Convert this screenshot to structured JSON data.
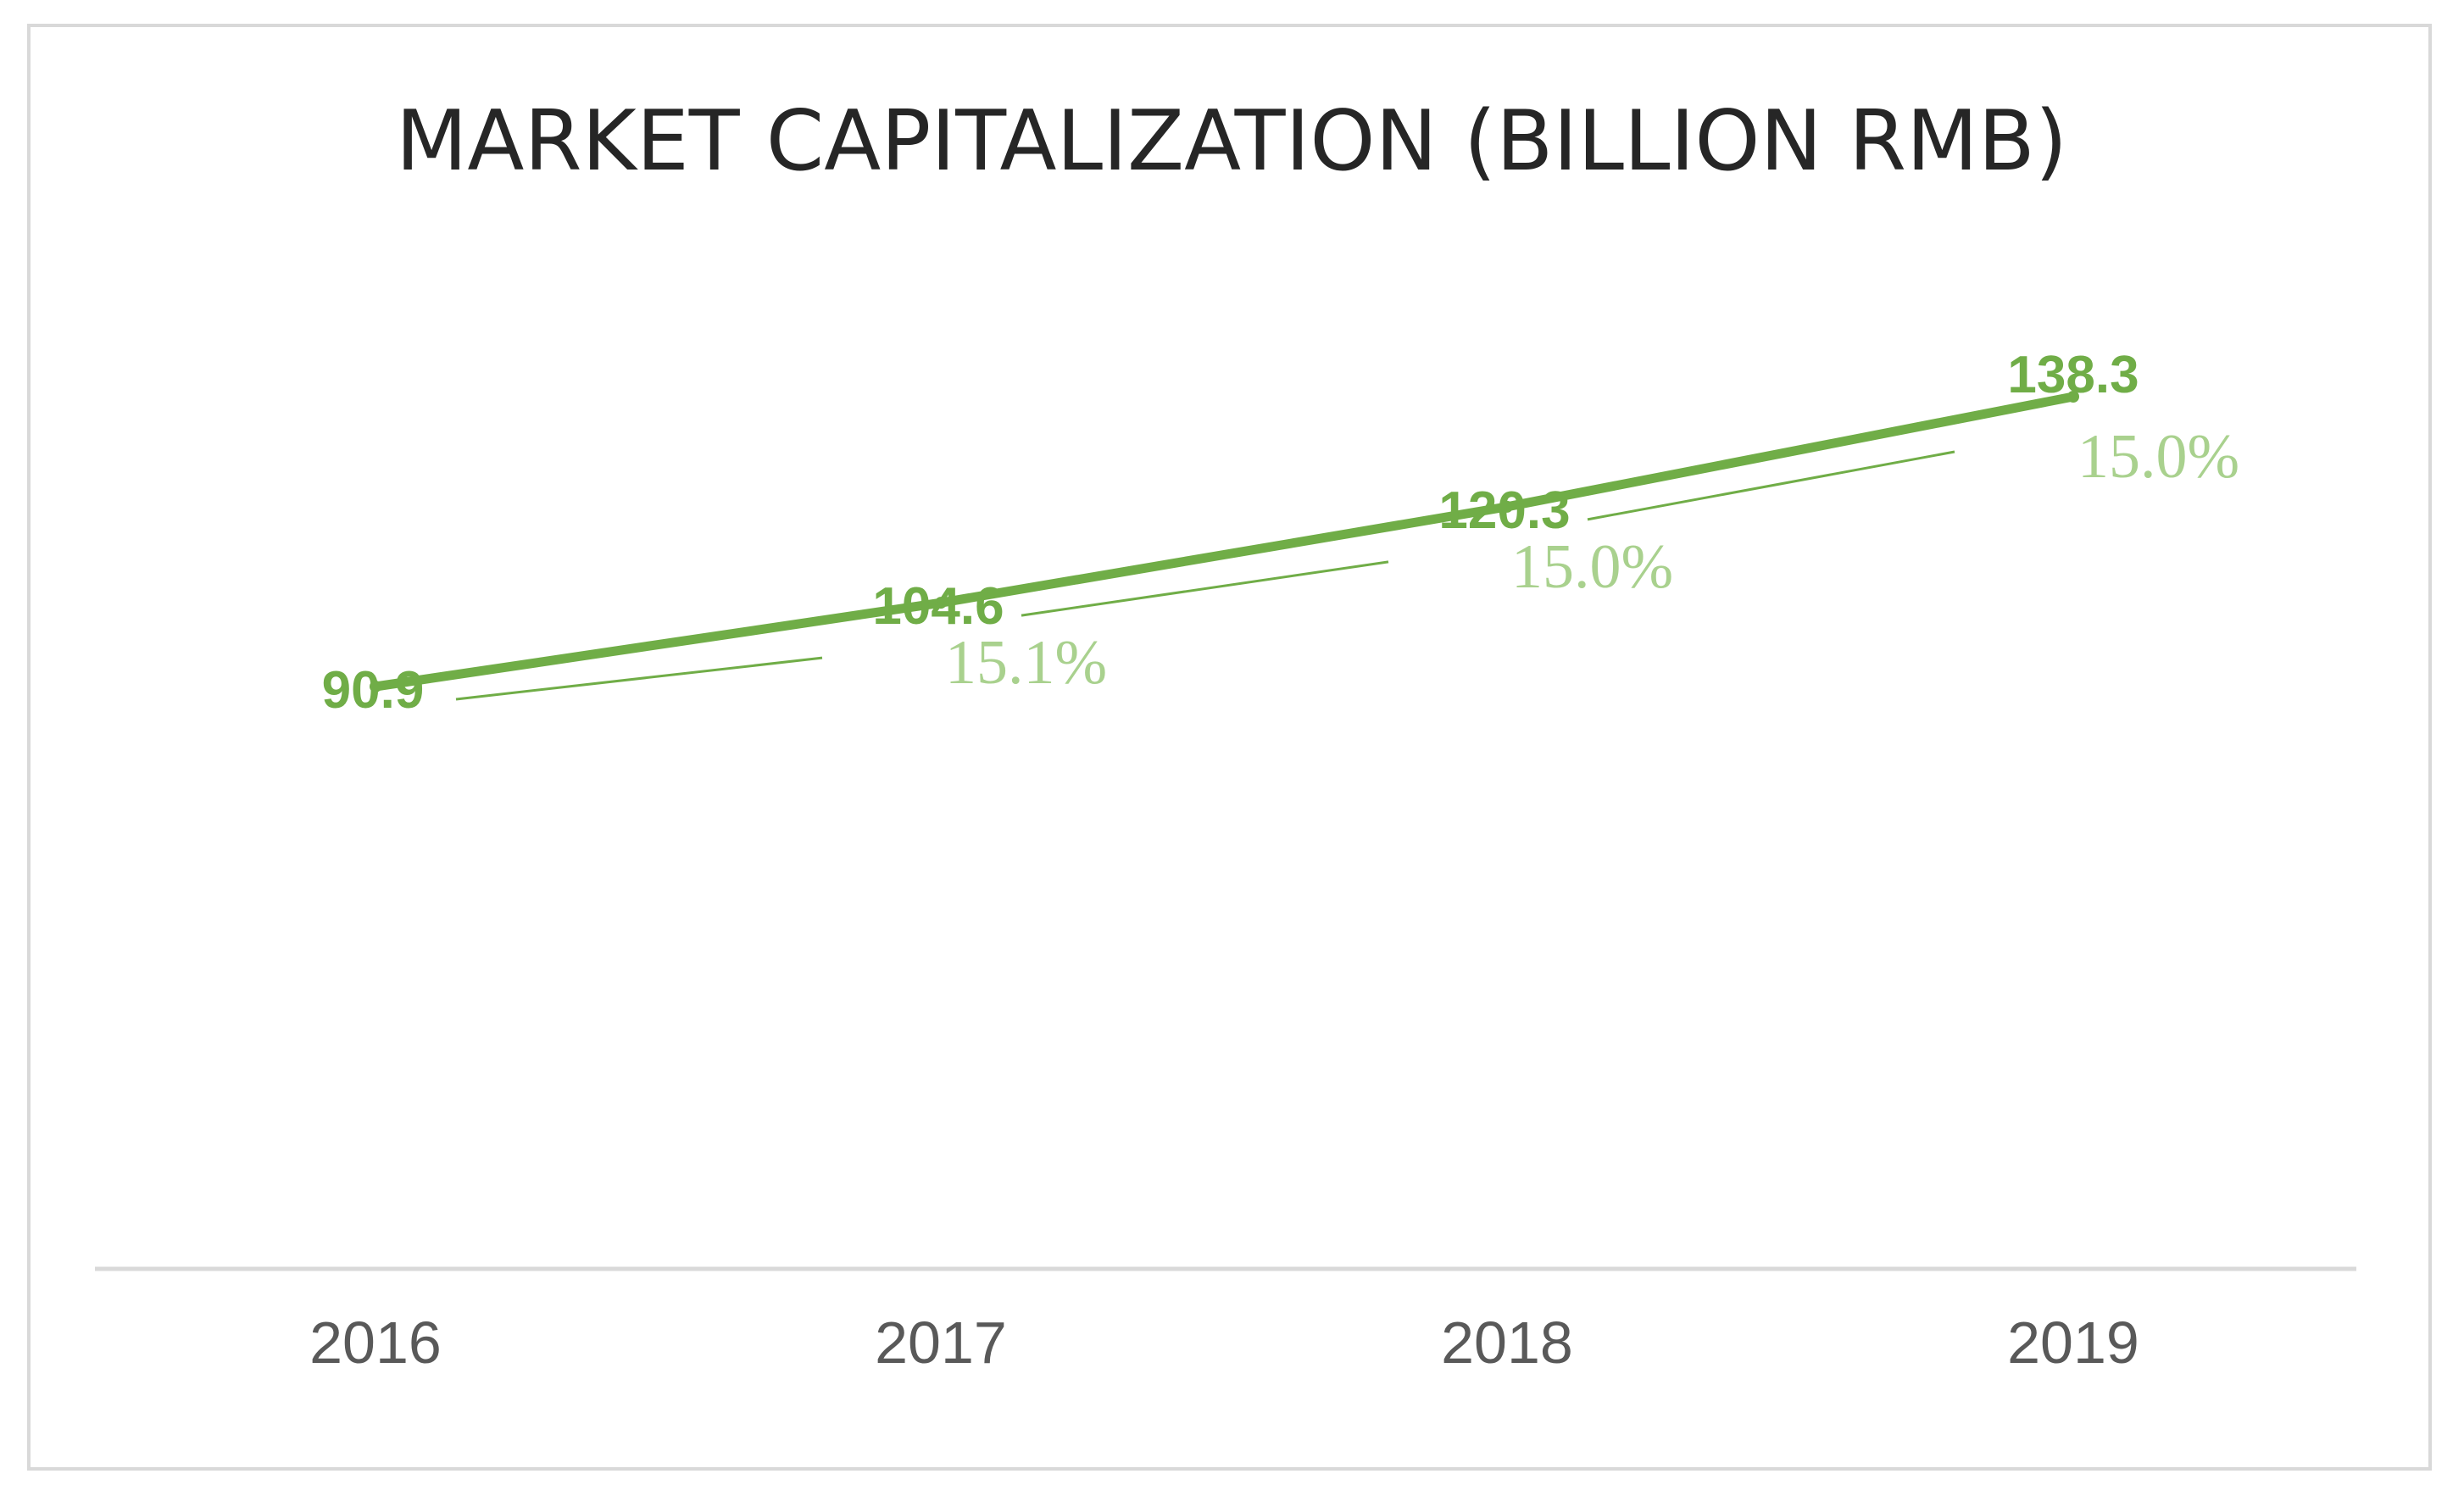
{
  "chart_data": {
    "type": "line",
    "title": "MARKET CAPITALIZATION (BILLION RMB)",
    "xlabel": "",
    "ylabel": "",
    "categories": [
      "2016",
      "2017",
      "2018",
      "2019"
    ],
    "series": [
      {
        "name": "Market Capitalization",
        "values": [
          90.9,
          104.6,
          120.3,
          138.3
        ],
        "labels": [
          "90.9",
          "104.6",
          "120.3",
          "138.3"
        ],
        "color": "#70ad47"
      }
    ],
    "growth_annotations": [
      {
        "between": [
          "2016",
          "2017"
        ],
        "label": "15.1%"
      },
      {
        "between": [
          "2017",
          "2018"
        ],
        "label": "15.0%"
      },
      {
        "between": [
          "2018",
          "2019"
        ],
        "label": "15.0%"
      }
    ],
    "ylim": [
      0,
      160
    ],
    "grid": false,
    "legend": "none",
    "colors": {
      "line": "#70ad47",
      "growth": "#a9d18e",
      "axis": "#d9d9d9",
      "tick_text": "#595959",
      "title": "#262626"
    }
  }
}
